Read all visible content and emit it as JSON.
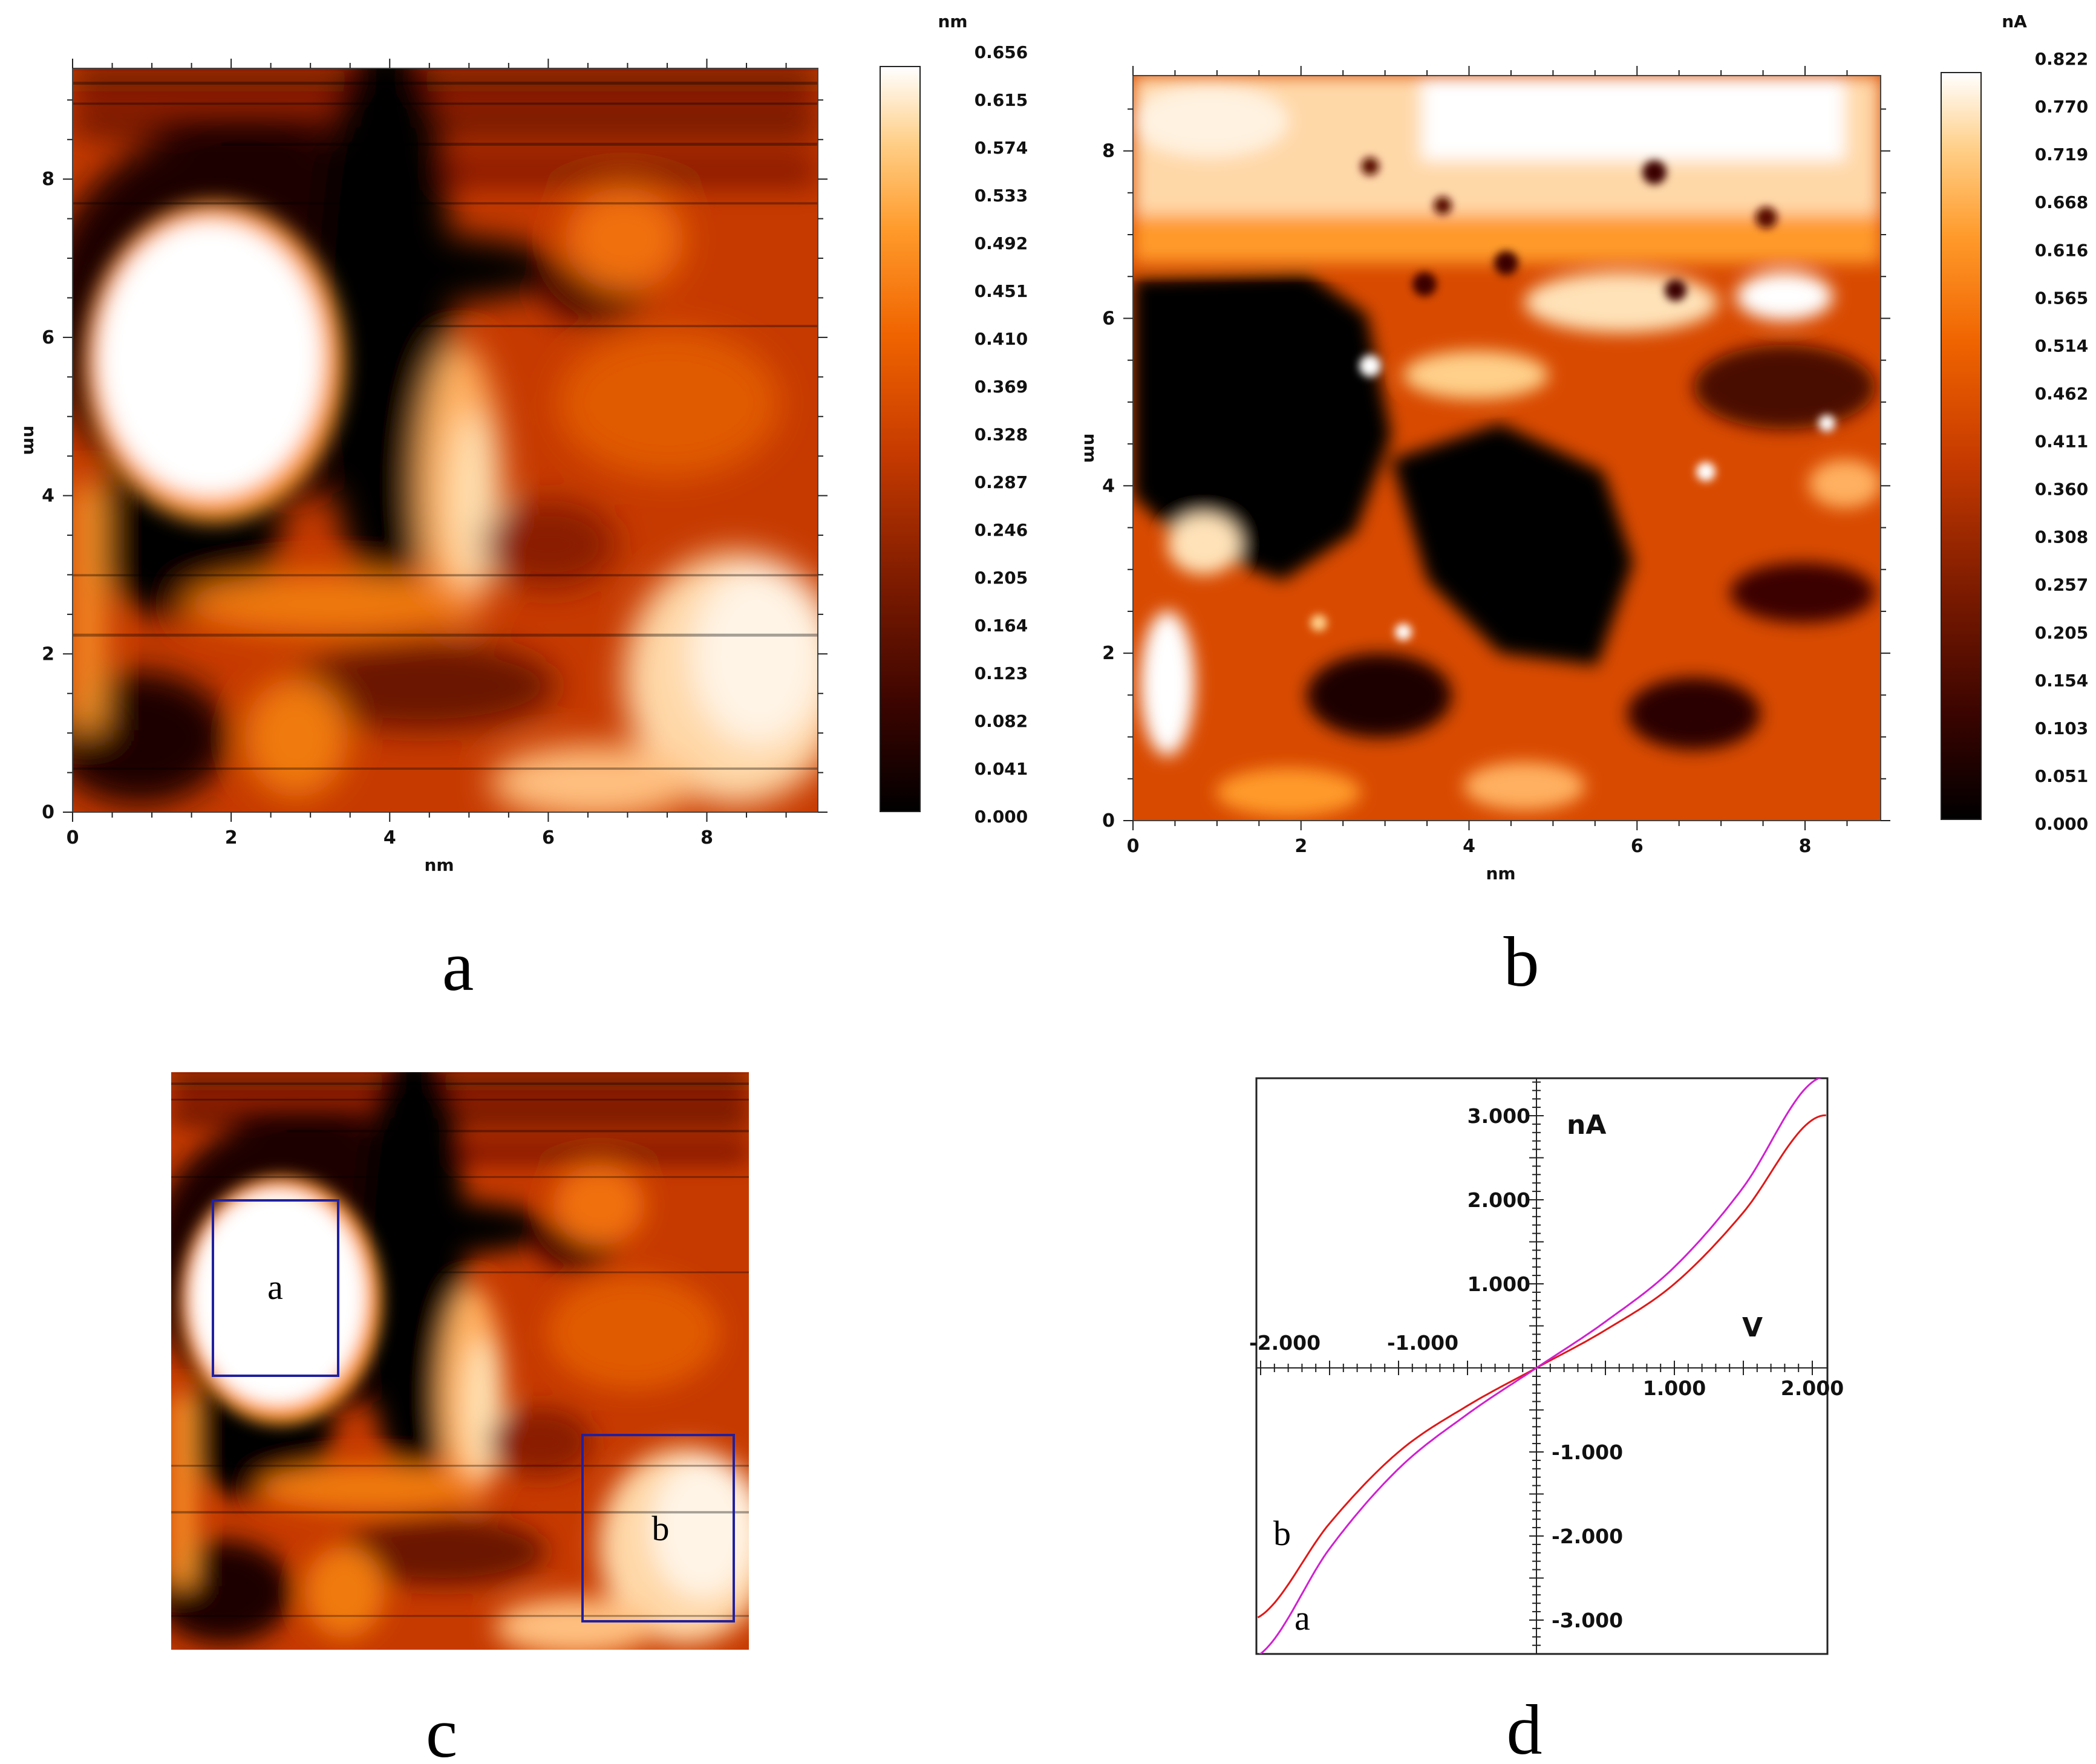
{
  "colors": {
    "colormap": [
      "#000000",
      "#3a0400",
      "#7a1a00",
      "#c63a00",
      "#f06400",
      "#ff9a2a",
      "#ffd08a",
      "#ffffff"
    ],
    "curve_a": "#d020d0",
    "curve_b": "#e01818",
    "region_box": "#2020a0"
  },
  "panels": {
    "a": {
      "letter": "a"
    },
    "b": {
      "letter": "b"
    },
    "c": {
      "letter": "c",
      "region_a_label": "a",
      "region_b_label": "b"
    },
    "d": {
      "letter": "d",
      "curve_a_label": "a",
      "curve_b_label": "b"
    }
  },
  "chart_data": [
    {
      "id": "a",
      "type": "heatmap",
      "description": "topography map",
      "xlabel": "nm",
      "ylabel": "nm",
      "xlim": [
        0,
        9.4
      ],
      "ylim": [
        0,
        9.4
      ],
      "x_ticks": [
        "0",
        "2",
        "4",
        "6",
        "8"
      ],
      "y_ticks": [
        "0",
        "2",
        "4",
        "6",
        "8"
      ],
      "colorbar": {
        "unit": "nm",
        "range": [
          0,
          0.656
        ],
        "labels": [
          "0.656",
          "0.615",
          "0.574",
          "0.533",
          "0.492",
          "0.451",
          "0.410",
          "0.369",
          "0.328",
          "0.287",
          "0.246",
          "0.205",
          "0.164",
          "0.123",
          "0.082",
          "0.041",
          "0.000"
        ]
      },
      "features": [
        {
          "kind": "bright-blob",
          "x": 1.3,
          "y": 5.9,
          "rx": 1.15,
          "ry": 1.5,
          "value": 0.656
        },
        {
          "kind": "dark-band",
          "x": 3.9,
          "y": 5.5,
          "rx": 0.7,
          "ry": 3.0,
          "value": 0.0
        },
        {
          "kind": "bright-ridge",
          "x": 4.9,
          "y": 4.5,
          "rx": 0.5,
          "ry": 1.6,
          "value": 0.5
        },
        {
          "kind": "bright-area",
          "x": 8.2,
          "y": 1.4,
          "rx": 1.4,
          "ry": 1.3,
          "value": 0.6
        }
      ]
    },
    {
      "id": "b",
      "type": "heatmap",
      "description": "current map",
      "xlabel": "nm",
      "ylabel": "nm",
      "xlim": [
        0,
        8.9
      ],
      "ylim": [
        0,
        8.9
      ],
      "x_ticks": [
        "0",
        "2",
        "4",
        "6",
        "8"
      ],
      "y_ticks": [
        "0",
        "2",
        "4",
        "6",
        "8"
      ],
      "colorbar": {
        "unit": "nA",
        "range": [
          0,
          0.822
        ],
        "labels": [
          "0.822",
          "0.770",
          "0.719",
          "0.668",
          "0.616",
          "0.565",
          "0.514",
          "0.462",
          "0.411",
          "0.360",
          "0.308",
          "0.257",
          "0.205",
          "0.154",
          "0.103",
          "0.051",
          "0.000"
        ]
      },
      "features": [
        {
          "kind": "bright-top",
          "x": 5.0,
          "y": 8.0,
          "rx": 4.5,
          "ry": 1.0,
          "value": 0.8
        },
        {
          "kind": "dark-region",
          "x": 1.8,
          "y": 4.6,
          "rx": 1.2,
          "ry": 1.8,
          "value": 0.0
        },
        {
          "kind": "dark-region",
          "x": 5.0,
          "y": 3.0,
          "rx": 0.9,
          "ry": 1.3,
          "value": 0.0
        },
        {
          "kind": "bright-spot",
          "x": 0.7,
          "y": 1.5,
          "rx": 0.5,
          "ry": 1.0,
          "value": 0.8
        }
      ]
    },
    {
      "id": "c",
      "type": "heatmap",
      "description": "topography map with two selected regions",
      "regions": [
        {
          "label": "a",
          "x": [
            0.55,
            2.2
          ],
          "y": [
            3.5,
            5.8
          ]
        },
        {
          "label": "b",
          "x": [
            5.4,
            7.4
          ],
          "y": [
            0.35,
            2.8
          ]
        }
      ]
    },
    {
      "id": "d",
      "type": "line",
      "xlabel": "V",
      "ylabel": "nA",
      "xlim": [
        -2.05,
        2.1
      ],
      "ylim": [
        -3.4,
        3.5
      ],
      "x_ticks": [
        "-2.000",
        "-1.000",
        "1.000",
        "2.000"
      ],
      "y_ticks": [
        "3.000",
        "2.000",
        "1.000",
        "-1.000",
        "-2.000",
        "-3.000"
      ],
      "series": [
        {
          "name": "a",
          "x": [
            -2.0,
            -1.5,
            -1.0,
            -0.5,
            0.0,
            0.5,
            1.0,
            1.5,
            2.0
          ],
          "y": [
            -3.4,
            -2.15,
            -1.2,
            -0.55,
            0.0,
            0.55,
            1.2,
            2.15,
            3.4
          ]
        },
        {
          "name": "b",
          "x": [
            -2.0,
            -1.5,
            -1.0,
            -0.5,
            0.0,
            0.5,
            1.0,
            1.5,
            2.0
          ],
          "y": [
            -2.95,
            -1.85,
            -1.0,
            -0.45,
            0.0,
            0.45,
            1.0,
            1.85,
            2.95
          ]
        }
      ]
    }
  ]
}
